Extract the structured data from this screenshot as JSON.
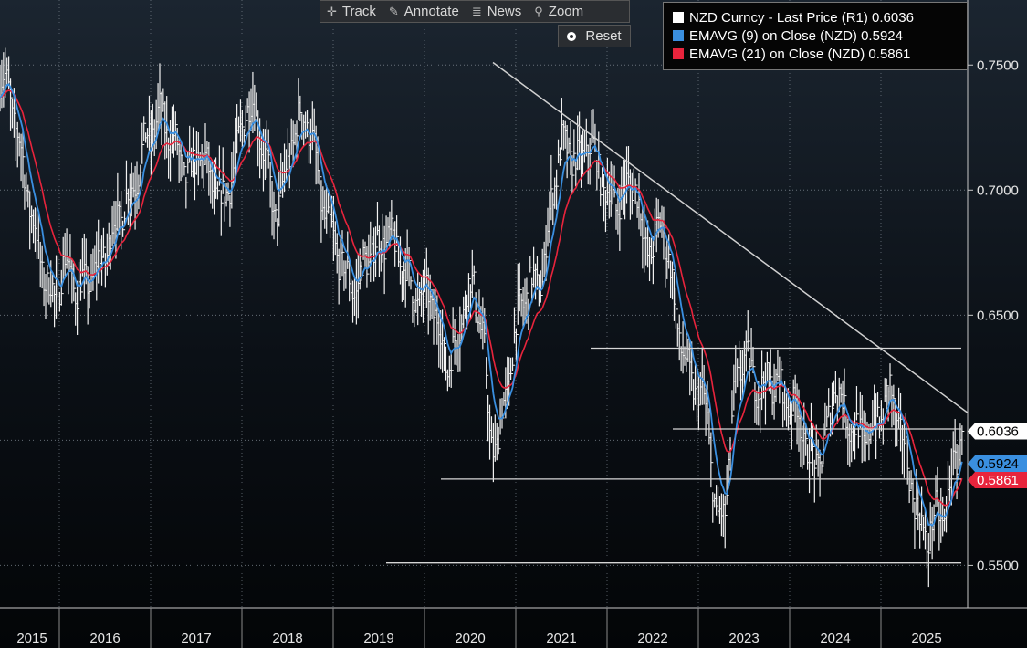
{
  "toolbar": {
    "buttons": [
      {
        "label": "Track",
        "icon": "crosshair-icon"
      },
      {
        "label": "Annotate",
        "icon": "pencil-icon"
      },
      {
        "label": "News",
        "icon": "news-icon"
      },
      {
        "label": "Zoom",
        "icon": "magnifier-icon"
      }
    ],
    "reset_label": "Reset"
  },
  "legend": {
    "items": [
      {
        "label": "NZD Curncy - Last Price (R1) 0.6036",
        "color": "#ffffff"
      },
      {
        "label": "EMAVG (9)  on Close (NZD)   0.5924",
        "color": "#3a8fe0"
      },
      {
        "label": "EMAVG (21)  on Close (NZD)  0.5861",
        "color": "#e8243c"
      }
    ]
  },
  "chart_data": {
    "type": "line",
    "title": "NZD Curncy",
    "xlabel": "",
    "ylabel": "",
    "x_tick_labels": [
      "2015",
      "2016",
      "2017",
      "2018",
      "2019",
      "2020",
      "2021",
      "2022",
      "2023",
      "2024",
      "2025"
    ],
    "y_tick_labels": [
      "0.7500",
      "0.7000",
      "0.6500",
      "0.5500"
    ],
    "y_ticks": [
      0.75,
      0.7,
      0.65,
      0.55
    ],
    "ylim": [
      0.533,
      0.776
    ],
    "xlim": [
      2014.85,
      2025.45
    ],
    "last_value_labels": [
      {
        "text": "0.6036",
        "value": 0.6036,
        "bg": "#ffffff",
        "fg": "#000000"
      },
      {
        "text": "0.5924",
        "value": 0.5924,
        "bg": "#3a8fe0",
        "fg": "#000000"
      },
      {
        "text": "0.5861",
        "value": 0.5861,
        "bg": "#e8243c",
        "fg": "#ffffff"
      }
    ],
    "price_anchors": [
      [
        2014.85,
        0.745
      ],
      [
        2014.95,
        0.74
      ],
      [
        2015.05,
        0.72
      ],
      [
        2015.2,
        0.69
      ],
      [
        2015.3,
        0.67
      ],
      [
        2015.45,
        0.655
      ],
      [
        2015.55,
        0.672
      ],
      [
        2015.7,
        0.66
      ],
      [
        2015.85,
        0.665
      ],
      [
        2016.0,
        0.675
      ],
      [
        2016.15,
        0.69
      ],
      [
        2016.3,
        0.7
      ],
      [
        2016.45,
        0.72
      ],
      [
        2016.6,
        0.73
      ],
      [
        2016.75,
        0.72
      ],
      [
        2016.9,
        0.705
      ],
      [
        2017.05,
        0.715
      ],
      [
        2017.2,
        0.7
      ],
      [
        2017.3,
        0.695
      ],
      [
        2017.45,
        0.715
      ],
      [
        2017.55,
        0.735
      ],
      [
        2017.65,
        0.73
      ],
      [
        2017.75,
        0.715
      ],
      [
        2017.85,
        0.69
      ],
      [
        2017.95,
        0.7
      ],
      [
        2018.05,
        0.72
      ],
      [
        2018.15,
        0.73
      ],
      [
        2018.25,
        0.725
      ],
      [
        2018.35,
        0.7
      ],
      [
        2018.45,
        0.685
      ],
      [
        2018.55,
        0.675
      ],
      [
        2018.65,
        0.665
      ],
      [
        2018.75,
        0.66
      ],
      [
        2018.85,
        0.672
      ],
      [
        2019.0,
        0.678
      ],
      [
        2019.1,
        0.682
      ],
      [
        2019.25,
        0.672
      ],
      [
        2019.35,
        0.662
      ],
      [
        2019.45,
        0.655
      ],
      [
        2019.55,
        0.66
      ],
      [
        2019.65,
        0.645
      ],
      [
        2019.75,
        0.63
      ],
      [
        2019.85,
        0.638
      ],
      [
        2019.95,
        0.658
      ],
      [
        2020.05,
        0.662
      ],
      [
        2020.15,
        0.638
      ],
      [
        2020.22,
        0.6
      ],
      [
        2020.3,
        0.598
      ],
      [
        2020.42,
        0.625
      ],
      [
        2020.55,
        0.655
      ],
      [
        2020.68,
        0.662
      ],
      [
        2020.8,
        0.665
      ],
      [
        2020.9,
        0.7
      ],
      [
        2021.0,
        0.718
      ],
      [
        2021.1,
        0.715
      ],
      [
        2021.2,
        0.71
      ],
      [
        2021.3,
        0.72
      ],
      [
        2021.4,
        0.71
      ],
      [
        2021.5,
        0.698
      ],
      [
        2021.6,
        0.695
      ],
      [
        2021.7,
        0.7
      ],
      [
        2021.8,
        0.705
      ],
      [
        2021.9,
        0.68
      ],
      [
        2022.0,
        0.675
      ],
      [
        2022.1,
        0.69
      ],
      [
        2022.2,
        0.665
      ],
      [
        2022.3,
        0.64
      ],
      [
        2022.4,
        0.625
      ],
      [
        2022.5,
        0.62
      ],
      [
        2022.6,
        0.61
      ],
      [
        2022.7,
        0.565
      ],
      [
        2022.8,
        0.575
      ],
      [
        2022.9,
        0.62
      ],
      [
        2023.0,
        0.635
      ],
      [
        2023.1,
        0.625
      ],
      [
        2023.2,
        0.62
      ],
      [
        2023.3,
        0.625
      ],
      [
        2023.4,
        0.62
      ],
      [
        2023.5,
        0.615
      ],
      [
        2023.6,
        0.61
      ],
      [
        2023.7,
        0.595
      ],
      [
        2023.8,
        0.59
      ],
      [
        2023.9,
        0.6
      ],
      [
        2024.0,
        0.625
      ],
      [
        2024.1,
        0.61
      ],
      [
        2024.2,
        0.605
      ],
      [
        2024.3,
        0.6
      ],
      [
        2024.4,
        0.605
      ],
      [
        2024.5,
        0.61
      ],
      [
        2024.6,
        0.62
      ],
      [
        2024.7,
        0.605
      ],
      [
        2024.8,
        0.59
      ],
      [
        2024.9,
        0.57
      ],
      [
        2025.0,
        0.56
      ],
      [
        2025.1,
        0.57
      ],
      [
        2025.2,
        0.57
      ],
      [
        2025.3,
        0.59
      ],
      [
        2025.4,
        0.6036
      ]
    ],
    "annotations": {
      "trendline": [
        [
          2020.25,
          0.751
        ],
        [
          2025.45,
          0.611
        ]
      ],
      "support_lines": [
        {
          "y": 0.551,
          "x": [
            2019.08,
            2025.38
          ]
        },
        {
          "y": 0.5845,
          "x": [
            2019.68,
            2025.38
          ]
        },
        {
          "y": 0.6045,
          "x": [
            2022.22,
            2025.38
          ]
        },
        {
          "y": 0.6368,
          "x": [
            2021.32,
            2025.38
          ]
        }
      ]
    }
  }
}
